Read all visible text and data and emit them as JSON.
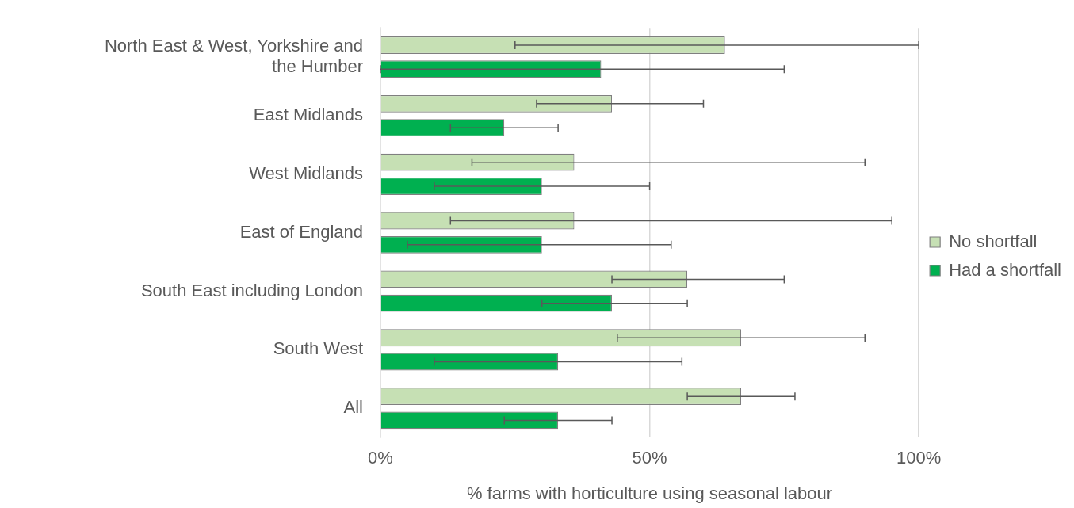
{
  "chart_data": {
    "type": "bar",
    "orientation": "horizontal",
    "xlabel": "% farms with horticulture using seasonal labour",
    "categories": [
      "North East & West, Yorkshire and the Humber",
      "East Midlands",
      "West Midlands",
      "East of England",
      "South East including London",
      "South West",
      "All"
    ],
    "series": [
      {
        "name": "No shortfall",
        "color": "#c6e0b4",
        "values": [
          64,
          43,
          36,
          36,
          57,
          67,
          67
        ],
        "errors": [
          [
            25,
            100
          ],
          [
            29,
            60
          ],
          [
            17,
            90
          ],
          [
            13,
            95
          ],
          [
            43,
            75
          ],
          [
            44,
            90
          ],
          [
            57,
            77
          ]
        ]
      },
      {
        "name": "Had a shortfall",
        "color": "#00b050",
        "values": [
          41,
          23,
          30,
          30,
          43,
          33,
          33
        ],
        "errors": [
          [
            0,
            75
          ],
          [
            13,
            33
          ],
          [
            10,
            50
          ],
          [
            5,
            54
          ],
          [
            30,
            57
          ],
          [
            10,
            56
          ],
          [
            23,
            43
          ]
        ]
      }
    ],
    "xlim": [
      0,
      100
    ],
    "xticks": [
      {
        "value": 0,
        "label": "0%"
      },
      {
        "value": 50,
        "label": "50%"
      },
      {
        "value": 100,
        "label": "100%"
      }
    ],
    "grid": "x",
    "legend": "right"
  }
}
